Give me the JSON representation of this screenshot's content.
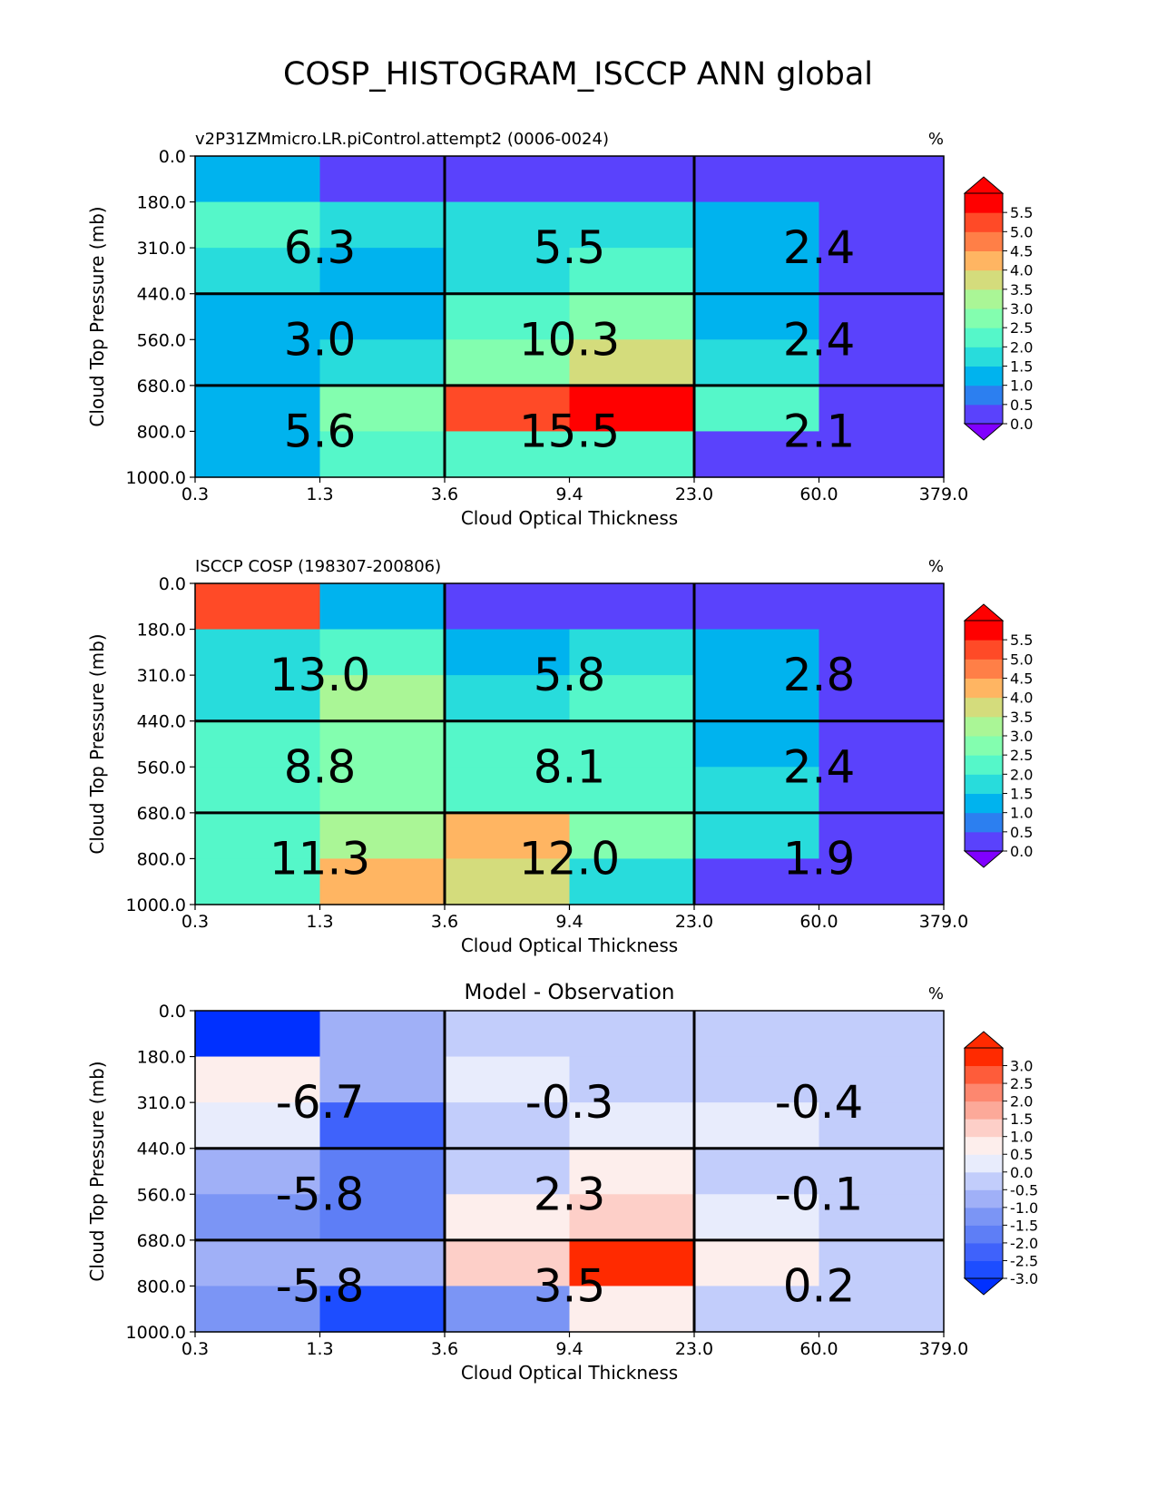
{
  "figure": {
    "title": "COSP_HISTOGRAM_ISCCP ANN global"
  },
  "chart_data": [
    {
      "type": "heatmap",
      "title_left": "v2P31ZMmicro.LR.piControl.attempt2 (0006-0024)",
      "title_center": "",
      "units": "%",
      "xlabel": "Cloud Optical Thickness",
      "ylabel": "Cloud Top Pressure (mb)",
      "x_ticks": [
        "0.3",
        "1.3",
        "3.6",
        "9.4",
        "23.0",
        "60.0",
        "379.0"
      ],
      "y_ticks": [
        "0.0",
        "180.0",
        "310.0",
        "440.0",
        "560.0",
        "680.0",
        "800.0",
        "1000.0"
      ],
      "cells": [
        [
          1.0,
          0.3,
          0.3,
          0.3,
          0.3,
          0.3
        ],
        [
          2.2,
          1.5,
          1.5,
          1.5,
          1.0,
          0.3
        ],
        [
          1.5,
          1.0,
          1.5,
          2.0,
          1.0,
          0.3
        ],
        [
          1.0,
          1.0,
          2.0,
          2.7,
          1.0,
          0.3
        ],
        [
          1.0,
          1.5,
          2.7,
          3.7,
          1.5,
          0.3
        ],
        [
          1.0,
          2.7,
          5.3,
          5.9,
          2.0,
          0.3
        ],
        [
          1.0,
          2.0,
          2.2,
          2.0,
          0.3,
          0.3
        ]
      ],
      "group_labels": [
        [
          "6.3",
          "5.5",
          "2.4"
        ],
        [
          "3.0",
          "10.3",
          "2.4"
        ],
        [
          "5.6",
          "15.5",
          "2.1"
        ]
      ],
      "colorbar": {
        "ticks": [
          "0.0",
          "0.5",
          "1.0",
          "1.5",
          "2.0",
          "2.5",
          "3.0",
          "3.5",
          "4.0",
          "4.5",
          "5.0",
          "5.5"
        ],
        "levels": [
          0.0,
          0.5,
          1.0,
          1.5,
          2.0,
          2.5,
          3.0,
          3.5,
          4.0,
          4.5,
          5.0,
          5.5
        ],
        "colors": [
          "#5a42fc",
          "#2c7ff0",
          "#00b3ee",
          "#28dcdc",
          "#55f7c9",
          "#83feaf",
          "#aaf696",
          "#d4dc7c",
          "#ffb562",
          "#ff7f47",
          "#ff4a27",
          "#ff0000"
        ],
        "under_color": "#8000ff",
        "over_color": "#ff0000"
      }
    },
    {
      "type": "heatmap",
      "title_left": "ISCCP COSP (198307-200806)",
      "title_center": "",
      "units": "%",
      "xlabel": "Cloud Optical Thickness",
      "ylabel": "Cloud Top Pressure (mb)",
      "x_ticks": [
        "0.3",
        "1.3",
        "3.6",
        "9.4",
        "23.0",
        "60.0",
        "379.0"
      ],
      "y_ticks": [
        "0.0",
        "180.0",
        "310.0",
        "440.0",
        "560.0",
        "680.0",
        "800.0",
        "1000.0"
      ],
      "cells": [
        [
          5.3,
          1.0,
          0.3,
          0.3,
          0.3,
          0.3
        ],
        [
          1.5,
          2.0,
          1.0,
          1.5,
          1.0,
          0.3
        ],
        [
          1.5,
          3.3,
          1.5,
          2.0,
          1.0,
          0.3
        ],
        [
          2.0,
          2.7,
          2.0,
          2.0,
          1.0,
          0.3
        ],
        [
          2.0,
          2.7,
          2.2,
          2.2,
          1.5,
          0.3
        ],
        [
          2.0,
          3.3,
          4.3,
          2.7,
          1.5,
          0.3
        ],
        [
          2.0,
          4.3,
          3.7,
          1.5,
          0.3,
          0.3
        ]
      ],
      "group_labels": [
        [
          "13.0",
          "5.8",
          "2.8"
        ],
        [
          "8.8",
          "8.1",
          "2.4"
        ],
        [
          "11.3",
          "12.0",
          "1.9"
        ]
      ],
      "colorbar": {
        "ticks": [
          "0.0",
          "0.5",
          "1.0",
          "1.5",
          "2.0",
          "2.5",
          "3.0",
          "3.5",
          "4.0",
          "4.5",
          "5.0",
          "5.5"
        ],
        "levels": [
          0.0,
          0.5,
          1.0,
          1.5,
          2.0,
          2.5,
          3.0,
          3.5,
          4.0,
          4.5,
          5.0,
          5.5
        ],
        "colors": [
          "#5a42fc",
          "#2c7ff0",
          "#00b3ee",
          "#28dcdc",
          "#55f7c9",
          "#83feaf",
          "#aaf696",
          "#d4dc7c",
          "#ffb562",
          "#ff7f47",
          "#ff4a27",
          "#ff0000"
        ],
        "under_color": "#8000ff",
        "over_color": "#ff0000"
      }
    },
    {
      "type": "heatmap",
      "title_left": "",
      "title_center": "Model - Observation",
      "units": "%",
      "xlabel": "Cloud Optical Thickness",
      "ylabel": "Cloud Top Pressure (mb)",
      "x_ticks": [
        "0.3",
        "1.3",
        "3.6",
        "9.4",
        "23.0",
        "60.0",
        "379.0"
      ],
      "y_ticks": [
        "0.0",
        "180.0",
        "310.0",
        "440.0",
        "560.0",
        "680.0",
        "800.0",
        "1000.0"
      ],
      "cells": [
        [
          -3.5,
          -0.7,
          -0.2,
          -0.2,
          -0.2,
          -0.2
        ],
        [
          0.7,
          -0.7,
          0.2,
          -0.2,
          -0.2,
          -0.2
        ],
        [
          0.2,
          -2.2,
          -0.2,
          0.2,
          0.2,
          -0.2
        ],
        [
          -0.7,
          -1.7,
          -0.2,
          0.7,
          -0.2,
          -0.2
        ],
        [
          -1.2,
          -1.7,
          0.7,
          1.2,
          0.2,
          -0.2
        ],
        [
          -0.7,
          -0.7,
          1.2,
          3.2,
          0.7,
          -0.2
        ],
        [
          -1.2,
          -2.7,
          -1.2,
          0.7,
          -0.2,
          -0.2
        ]
      ],
      "group_labels": [
        [
          "-6.7",
          "-0.3",
          "-0.4"
        ],
        [
          "-5.8",
          "2.3",
          "-0.1"
        ],
        [
          "-5.8",
          "3.5",
          "0.2"
        ]
      ],
      "colorbar": {
        "ticks": [
          "-3.0",
          "-2.5",
          "-2.0",
          "-1.5",
          "-1.0",
          "-0.5",
          "0.0",
          "0.5",
          "1.0",
          "1.5",
          "2.0",
          "2.5",
          "3.0"
        ],
        "levels": [
          -3.0,
          -2.5,
          -2.0,
          -1.5,
          -1.0,
          -0.5,
          0.0,
          0.5,
          1.0,
          1.5,
          2.0,
          2.5,
          3.0
        ],
        "colors": [
          "#1d4dff",
          "#3f62fb",
          "#5e7ef6",
          "#7b95f5",
          "#a0b0f7",
          "#c2cdfb",
          "#e8ecfc",
          "#fdeeec",
          "#fdcfc8",
          "#fca999",
          "#fd876f",
          "#fe5c3a",
          "#ff2a00"
        ],
        "under_color": "#0030ff",
        "over_color": "#ff2a00"
      }
    }
  ]
}
